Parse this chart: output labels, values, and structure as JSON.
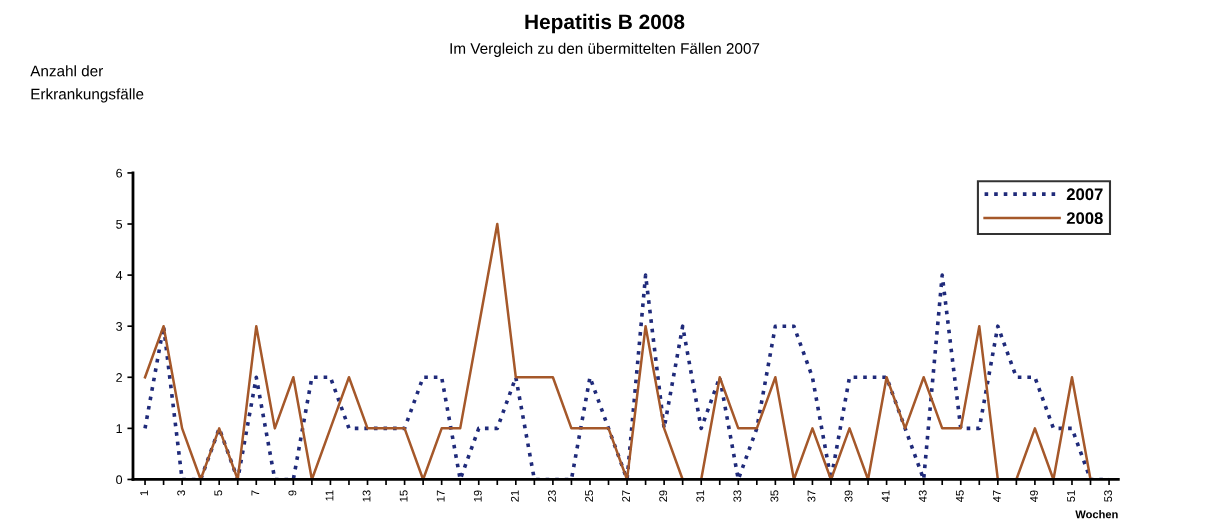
{
  "chart_data": {
    "type": "line",
    "title": "Hepatitis B 2008",
    "subtitle": "Im Vergleich zu den übermittelten Fällen 2007",
    "ylabel": "Anzahl der\nErkrankungsfälle",
    "xlabel": "Wochen",
    "x": [
      1,
      2,
      3,
      4,
      5,
      6,
      7,
      8,
      9,
      10,
      11,
      12,
      13,
      14,
      15,
      16,
      17,
      18,
      19,
      20,
      21,
      22,
      23,
      24,
      25,
      26,
      27,
      28,
      29,
      30,
      31,
      32,
      33,
      34,
      35,
      36,
      37,
      38,
      39,
      40,
      41,
      42,
      43,
      44,
      45,
      46,
      47,
      48,
      49,
      50,
      51,
      52,
      53
    ],
    "series": [
      {
        "name": "2007",
        "color": "#1f2a7a",
        "line_style": "dotted",
        "values": [
          1,
          3,
          0,
          0,
          1,
          0,
          2,
          0,
          0,
          2,
          2,
          1,
          1,
          1,
          1,
          2,
          2,
          0,
          1,
          1,
          2,
          0,
          0,
          0,
          2,
          1,
          0,
          4,
          1,
          3,
          1,
          2,
          0,
          1,
          3,
          3,
          2,
          0,
          2,
          2,
          2,
          1,
          0,
          4,
          1,
          1,
          3,
          2,
          2,
          1,
          1,
          0,
          0
        ]
      },
      {
        "name": "2008",
        "color": "#a5582a",
        "line_style": "solid",
        "values": [
          2,
          3,
          1,
          0,
          1,
          0,
          3,
          1,
          2,
          0,
          1,
          2,
          1,
          1,
          1,
          0,
          1,
          1,
          3,
          5,
          2,
          2,
          2,
          1,
          1,
          1,
          0,
          3,
          1,
          0,
          0,
          2,
          1,
          1,
          2,
          0,
          1,
          0,
          1,
          0,
          2,
          1,
          2,
          1,
          1,
          3,
          0,
          0,
          1,
          0,
          2,
          0,
          null
        ]
      }
    ],
    "xlim": [
      0.35,
      53.5
    ],
    "xticks": [
      1,
      {
        "value": 2,
        "label": null
      },
      3,
      {
        "value": 4,
        "label": null
      },
      5,
      {
        "value": 6,
        "label": null
      },
      7,
      {
        "value": 8,
        "label": null
      },
      9,
      {
        "value": 10,
        "label": null
      },
      11,
      {
        "value": 12,
        "label": null
      },
      13,
      {
        "value": 14,
        "label": null
      },
      15,
      {
        "value": 16,
        "label": null
      },
      17,
      {
        "value": 18,
        "label": null
      },
      19,
      {
        "value": 20,
        "label": null
      },
      21,
      {
        "value": 22,
        "label": null
      },
      23,
      {
        "value": 24,
        "label": null
      },
      25,
      {
        "value": 26,
        "label": null
      },
      27,
      {
        "value": 28,
        "label": null
      },
      29,
      {
        "value": 30,
        "label": null
      },
      31,
      {
        "value": 32,
        "label": null
      },
      33,
      {
        "value": 34,
        "label": null
      },
      35,
      {
        "value": 36,
        "label": null
      },
      37,
      {
        "value": 38,
        "label": null
      },
      39,
      {
        "value": 40,
        "label": null
      },
      41,
      {
        "value": 42,
        "label": null
      },
      43,
      {
        "value": 44,
        "label": null
      },
      45,
      {
        "value": 46,
        "label": null
      },
      47,
      {
        "value": 48,
        "label": null
      },
      49,
      {
        "value": 50,
        "label": null
      },
      51,
      {
        "value": 52,
        "label": null
      },
      53
    ],
    "ylim": [
      0,
      6
    ],
    "yticks": [
      0,
      1,
      2,
      3,
      4,
      5,
      6
    ],
    "grid": false,
    "legend": "top right",
    "marker": "none"
  }
}
